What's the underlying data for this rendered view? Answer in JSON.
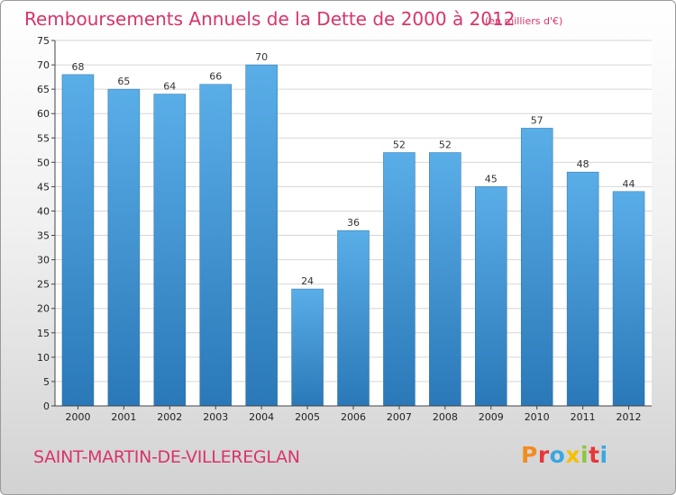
{
  "header": {
    "title": "Remboursements Annuels de la Dette de 2000 à 2012",
    "unit": "(en milliers d'€)"
  },
  "footer": {
    "commune": "SAINT-MARTIN-DE-VILLEREGLAN",
    "logo_letters": [
      "P",
      "r",
      "o",
      "x",
      "i",
      "t",
      "i"
    ],
    "logo_colors": [
      "#f28c1e",
      "#e8363b",
      "#3aa7e0",
      "#f5c000",
      "#8cc63f",
      "#e8363b",
      "#3aa7e0"
    ]
  },
  "chart_data": {
    "type": "bar",
    "categories": [
      "2000",
      "2001",
      "2002",
      "2003",
      "2004",
      "2005",
      "2006",
      "2007",
      "2008",
      "2009",
      "2010",
      "2011",
      "2012"
    ],
    "values": [
      68,
      65,
      64,
      66,
      70,
      24,
      36,
      52,
      52,
      45,
      57,
      48,
      44
    ],
    "ylim": [
      0,
      75
    ],
    "yticks": [
      0,
      5,
      10,
      15,
      20,
      25,
      30,
      35,
      40,
      45,
      50,
      55,
      60,
      65,
      70,
      75
    ],
    "grid": true,
    "bar_color_top": "#5aaee8",
    "bar_color_bottom": "#2a78b8"
  }
}
